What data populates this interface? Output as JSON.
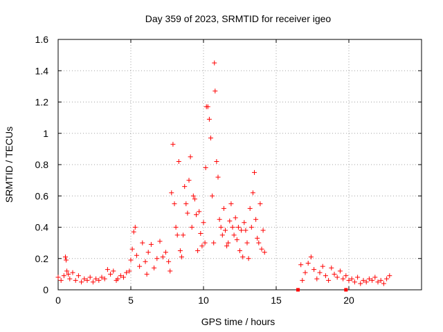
{
  "chart_data": {
    "type": "scatter",
    "title": "Day 359 of 2023, SRMTID for receiver igeo",
    "xlabel": "GPS time / hours",
    "ylabel": "SRMTID / TECUs",
    "xlim": [
      0,
      25
    ],
    "ylim": [
      0,
      1.6
    ],
    "xticks": [
      "0",
      "5",
      "10",
      "15",
      "20"
    ],
    "yticks": [
      "0",
      "0.2",
      "0.4",
      "0.6",
      "0.8",
      "1",
      "1.2",
      "1.4",
      "1.6"
    ],
    "grid": true,
    "marker": "plus",
    "color": "#ff0000",
    "series": [
      {
        "name": "SRMTID",
        "x": [
          0.0,
          0.2,
          0.4,
          0.5,
          0.55,
          0.6,
          0.7,
          0.8,
          1.0,
          1.2,
          1.4,
          1.6,
          1.8,
          2.0,
          2.2,
          2.4,
          2.6,
          2.8,
          3.0,
          3.2,
          3.4,
          3.6,
          3.8,
          4.0,
          4.1,
          4.3,
          4.5,
          4.7,
          4.9,
          5.0,
          5.1,
          5.2,
          5.3,
          5.4,
          5.6,
          5.8,
          6.0,
          6.1,
          6.2,
          6.4,
          6.6,
          6.8,
          7.0,
          7.2,
          7.4,
          7.6,
          7.7,
          7.8,
          7.9,
          8.0,
          8.1,
          8.2,
          8.3,
          8.4,
          8.5,
          8.6,
          8.7,
          8.8,
          8.9,
          9.0,
          9.1,
          9.2,
          9.3,
          9.4,
          9.5,
          9.6,
          9.7,
          9.8,
          9.9,
          10.0,
          10.1,
          10.15,
          10.2,
          10.3,
          10.4,
          10.5,
          10.6,
          10.7,
          10.75,
          10.8,
          10.9,
          11.0,
          11.1,
          11.2,
          11.3,
          11.4,
          11.5,
          11.6,
          11.7,
          11.8,
          11.9,
          12.0,
          12.1,
          12.2,
          12.3,
          12.4,
          12.5,
          12.6,
          12.7,
          12.8,
          12.9,
          13.0,
          13.1,
          13.2,
          13.3,
          13.4,
          13.5,
          13.6,
          13.7,
          13.8,
          13.9,
          14.0,
          14.1,
          14.2,
          16.7,
          16.8,
          17.0,
          17.2,
          17.4,
          17.6,
          17.8,
          18.0,
          18.2,
          18.4,
          18.6,
          18.8,
          19.0,
          19.2,
          19.4,
          19.6,
          19.8,
          20.0,
          20.2,
          20.4,
          20.6,
          20.8,
          21.0,
          21.2,
          21.4,
          21.6,
          21.8,
          22.0,
          22.2,
          22.4,
          22.6,
          22.8
        ],
        "y": [
          0.08,
          0.06,
          0.09,
          0.21,
          0.19,
          0.12,
          0.1,
          0.07,
          0.11,
          0.06,
          0.09,
          0.05,
          0.07,
          0.06,
          0.08,
          0.05,
          0.07,
          0.06,
          0.08,
          0.07,
          0.13,
          0.1,
          0.12,
          0.06,
          0.07,
          0.09,
          0.08,
          0.11,
          0.12,
          0.19,
          0.26,
          0.37,
          0.4,
          0.22,
          0.15,
          0.3,
          0.18,
          0.1,
          0.24,
          0.29,
          0.14,
          0.2,
          0.31,
          0.21,
          0.24,
          0.18,
          0.12,
          0.62,
          0.93,
          0.55,
          0.4,
          0.35,
          0.82,
          0.25,
          0.21,
          0.35,
          0.66,
          0.55,
          0.49,
          0.7,
          0.85,
          0.4,
          0.6,
          0.58,
          0.48,
          0.25,
          0.5,
          0.36,
          0.28,
          0.43,
          0.3,
          0.78,
          1.17,
          1.17,
          1.09,
          0.97,
          0.6,
          0.3,
          1.45,
          1.27,
          0.82,
          0.72,
          0.45,
          0.4,
          0.35,
          0.52,
          0.38,
          0.28,
          0.3,
          0.44,
          0.55,
          0.4,
          0.35,
          0.46,
          0.32,
          0.4,
          0.25,
          0.38,
          0.21,
          0.43,
          0.38,
          0.3,
          0.2,
          0.52,
          0.4,
          0.62,
          0.75,
          0.45,
          0.33,
          0.3,
          0.55,
          0.26,
          0.38,
          0.24,
          0.16,
          0.06,
          0.11,
          0.17,
          0.21,
          0.13,
          0.07,
          0.11,
          0.15,
          0.09,
          0.06,
          0.14,
          0.1,
          0.08,
          0.12,
          0.07,
          0.09,
          0.06,
          0.07,
          0.05,
          0.08,
          0.04,
          0.06,
          0.05,
          0.07,
          0.06,
          0.08,
          0.05,
          0.06,
          0.04,
          0.07,
          0.09
        ],
        "missing_gaps_x": [
          16.5,
          19.8
        ]
      }
    ]
  }
}
